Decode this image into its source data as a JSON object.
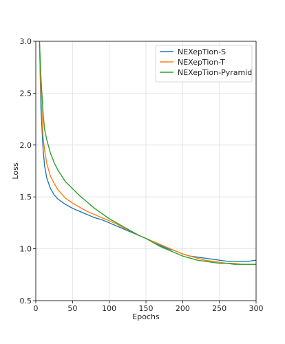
{
  "chart_data": {
    "type": "line",
    "title": "",
    "xlabel": "Epochs",
    "ylabel": "Loss",
    "xlim": [
      0,
      300
    ],
    "ylim": [
      0.5,
      3.0
    ],
    "xticks": [
      0,
      50,
      100,
      150,
      200,
      250,
      300
    ],
    "yticks": [
      0.5,
      1.0,
      1.5,
      2.0,
      2.5,
      3.0
    ],
    "xtick_labels": [
      "0",
      "50",
      "100",
      "150",
      "200",
      "250",
      "300"
    ],
    "ytick_labels": [
      "0.5",
      "1.0",
      "1.5",
      "2.0",
      "2.5",
      "3.0"
    ],
    "grid": true,
    "legend_position": "top-right",
    "series": [
      {
        "name": "NEXepTion-S",
        "color": "#1f77b4",
        "x": [
          5,
          7,
          10,
          12,
          15,
          20,
          25,
          30,
          40,
          50,
          60,
          70,
          80,
          90,
          100,
          110,
          120,
          130,
          140,
          150,
          160,
          170,
          180,
          190,
          200,
          210,
          220,
          230,
          240,
          250,
          260,
          270,
          280,
          290,
          300
        ],
        "y": [
          3.0,
          2.35,
          1.95,
          1.8,
          1.68,
          1.58,
          1.52,
          1.48,
          1.43,
          1.39,
          1.36,
          1.33,
          1.3,
          1.28,
          1.25,
          1.22,
          1.19,
          1.16,
          1.13,
          1.1,
          1.06,
          1.03,
          1.0,
          0.98,
          0.95,
          0.93,
          0.92,
          0.91,
          0.9,
          0.89,
          0.88,
          0.88,
          0.88,
          0.88,
          0.89
        ]
      },
      {
        "name": "NEXepTion-T",
        "color": "#ff7f0e",
        "x": [
          5,
          7,
          10,
          12,
          15,
          20,
          25,
          30,
          40,
          50,
          60,
          70,
          80,
          90,
          100,
          110,
          120,
          130,
          140,
          150,
          160,
          170,
          180,
          190,
          200,
          210,
          220,
          230,
          240,
          250,
          260,
          270,
          280,
          290,
          300
        ],
        "y": [
          3.0,
          2.5,
          2.07,
          1.95,
          1.82,
          1.7,
          1.63,
          1.57,
          1.49,
          1.44,
          1.4,
          1.36,
          1.33,
          1.3,
          1.27,
          1.24,
          1.2,
          1.17,
          1.13,
          1.1,
          1.07,
          1.04,
          1.01,
          0.98,
          0.95,
          0.93,
          0.91,
          0.89,
          0.88,
          0.87,
          0.86,
          0.86,
          0.85,
          0.85,
          0.85
        ]
      },
      {
        "name": "NEXepTion-Pyramid",
        "color": "#2ca02c",
        "x": [
          5,
          7,
          10,
          12,
          15,
          20,
          25,
          30,
          40,
          50,
          60,
          70,
          80,
          90,
          100,
          110,
          120,
          130,
          140,
          150,
          160,
          170,
          180,
          190,
          200,
          210,
          220,
          230,
          240,
          250,
          260,
          270,
          280,
          290,
          300
        ],
        "y": [
          3.0,
          2.65,
          2.3,
          2.15,
          2.05,
          1.92,
          1.83,
          1.76,
          1.65,
          1.58,
          1.51,
          1.45,
          1.39,
          1.34,
          1.29,
          1.25,
          1.21,
          1.17,
          1.13,
          1.1,
          1.06,
          1.02,
          0.99,
          0.96,
          0.93,
          0.91,
          0.89,
          0.88,
          0.87,
          0.86,
          0.86,
          0.85,
          0.85,
          0.85,
          0.85
        ]
      }
    ]
  }
}
